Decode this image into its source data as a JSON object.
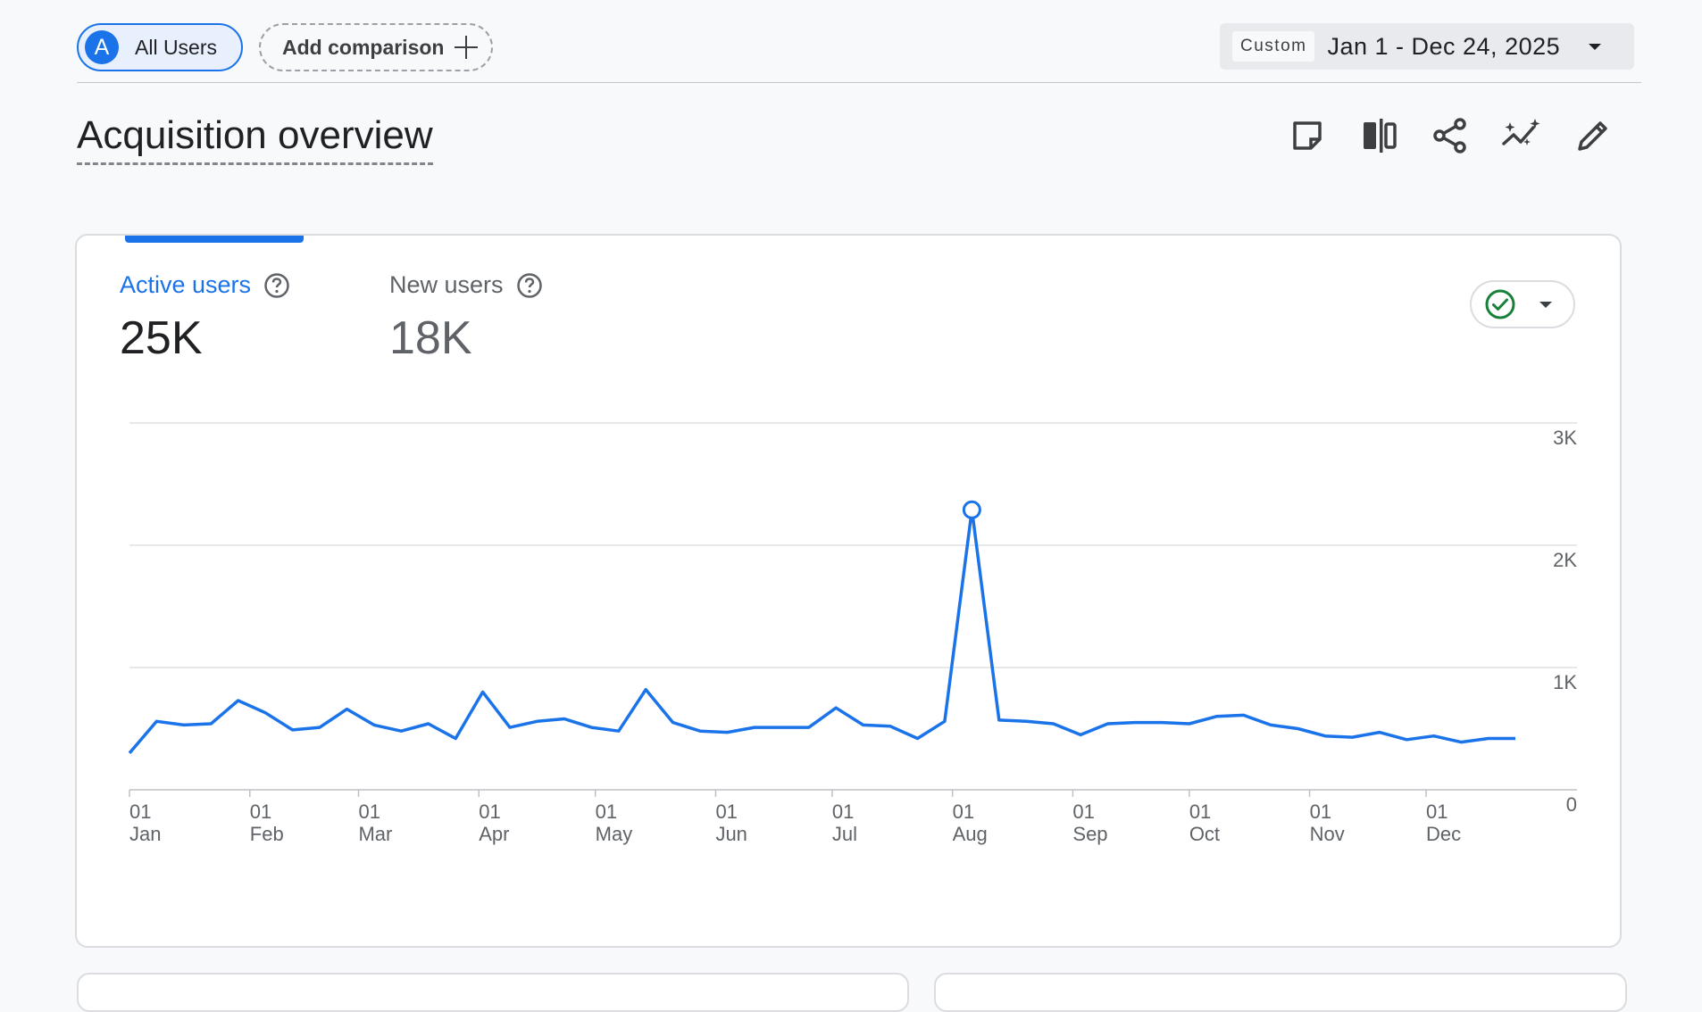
{
  "header": {
    "segment_avatar": "A",
    "segment_label": "All Users",
    "add_comparison_label": "Add comparison",
    "date_tag": "Custom",
    "date_range": "Jan 1 - Dec 24, 2025"
  },
  "page": {
    "title": "Acquisition overview",
    "toolbar_icons": [
      "note-icon",
      "compare-icon",
      "share-icon",
      "insights-icon",
      "edit-icon"
    ]
  },
  "metrics": [
    {
      "label": "Active users",
      "value": "25K",
      "selected": true
    },
    {
      "label": "New users",
      "value": "18K",
      "selected": false
    }
  ],
  "colors": {
    "accent": "#1a73e8",
    "status_ok": "#188038",
    "gridline": "#e0e0e0"
  },
  "chart_data": {
    "type": "line",
    "series": [
      {
        "values": [
          300,
          560,
          530,
          540,
          730,
          630,
          490,
          510,
          660,
          530,
          480,
          540,
          420,
          800,
          510,
          560,
          580,
          510,
          480,
          820,
          550,
          480,
          470,
          510,
          510,
          510,
          670,
          530,
          520,
          420,
          560,
          2290,
          570,
          560,
          540,
          450,
          540,
          550,
          550,
          540,
          600,
          610,
          530,
          500,
          440,
          430,
          470,
          410,
          440,
          390,
          420,
          420
        ]
      }
    ],
    "x_tick_labels": [
      {
        "day": "01",
        "month": "Jan"
      },
      {
        "day": "01",
        "month": "Feb"
      },
      {
        "day": "01",
        "month": "Mar"
      },
      {
        "day": "01",
        "month": "Apr"
      },
      {
        "day": "01",
        "month": "May"
      },
      {
        "day": "01",
        "month": "Jun"
      },
      {
        "day": "01",
        "month": "Jul"
      },
      {
        "day": "01",
        "month": "Aug"
      },
      {
        "day": "01",
        "month": "Sep"
      },
      {
        "day": "01",
        "month": "Oct"
      },
      {
        "day": "01",
        "month": "Nov"
      },
      {
        "day": "01",
        "month": "Dec"
      }
    ],
    "y_tick_labels": [
      "3K",
      "2K",
      "1K",
      "0"
    ],
    "ylim": [
      0,
      3000
    ],
    "highlight_point_index": 31,
    "grid": true
  }
}
